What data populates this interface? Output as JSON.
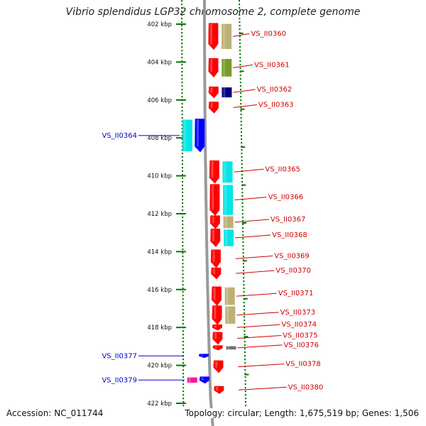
{
  "title": "Vibrio splendidus LGP32 chromosome 2, complete genome",
  "footer": {
    "accession": "Accession: NC_011744",
    "summary": "Topology: circular; Length: 1,675,519 bp; Genes: 1,506"
  },
  "colors": {
    "red": "#ff0000",
    "tan": "#bdb076",
    "olive": "#7a9a2a",
    "navy": "#000080",
    "cyan": "#00e5e5",
    "blue": "#0000ff",
    "magenta": "#ff1493",
    "gray": "#707070",
    "scale": "#007700",
    "labelRed": "#cc0000",
    "labelBlue": "#0000cc"
  },
  "scale": {
    "ticks": [
      {
        "kbp": 402,
        "label": "402 kbp"
      },
      {
        "kbp": 404,
        "label": "404 kbp"
      },
      {
        "kbp": 406,
        "label": "406 kbp"
      },
      {
        "kbp": 408,
        "label": "408 kbp"
      },
      {
        "kbp": 410,
        "label": "410 kbp"
      },
      {
        "kbp": 412,
        "label": "412 kbp"
      },
      {
        "kbp": 414,
        "label": "414 kbp"
      },
      {
        "kbp": 416,
        "label": "416 kbp"
      },
      {
        "kbp": 418,
        "label": "418 kbp"
      },
      {
        "kbp": 420,
        "label": "420 kbp"
      },
      {
        "kbp": 422,
        "label": "422 kbp"
      }
    ]
  },
  "genes": [
    {
      "id": "VS_II0360",
      "label": "VS_II0360",
      "strand": "forward",
      "start_kbp": 401.95,
      "end_kbp": 403.35,
      "color": "red",
      "category_color": "tan"
    },
    {
      "id": "VS_II0361",
      "label": "VS_II0361",
      "strand": "forward",
      "start_kbp": 403.8,
      "end_kbp": 404.8,
      "color": "red",
      "category_color": "olive"
    },
    {
      "id": "VS_II0362",
      "label": "VS_II0362",
      "strand": "forward",
      "start_kbp": 405.3,
      "end_kbp": 405.9,
      "color": "red",
      "category_color": "navy"
    },
    {
      "id": "VS_II0363",
      "label": "VS_II0363",
      "strand": "forward",
      "start_kbp": 406.1,
      "end_kbp": 406.7,
      "color": "red",
      "category_color": ""
    },
    {
      "id": "VS_II0364",
      "label": "VS_II0364",
      "strand": "forward",
      "start_kbp": 407.0,
      "end_kbp": 408.75,
      "color": "blue",
      "category_color": "cyan",
      "side": "left"
    },
    {
      "id": "VS_II0365",
      "label": "VS_II0365",
      "strand": "forward",
      "start_kbp": 409.2,
      "end_kbp": 410.4,
      "color": "red",
      "category_color": "cyan"
    },
    {
      "id": "VS_II0366",
      "label": "VS_II0366",
      "strand": "forward",
      "start_kbp": 410.45,
      "end_kbp": 412.1,
      "color": "red",
      "category_color": "cyan"
    },
    {
      "id": "VS_II0367",
      "label": "VS_II0367",
      "strand": "forward",
      "start_kbp": 412.1,
      "end_kbp": 412.8,
      "color": "red",
      "category_color": "tan"
    },
    {
      "id": "VS_II0368",
      "label": "VS_II0368",
      "strand": "forward",
      "start_kbp": 412.8,
      "end_kbp": 413.75,
      "color": "red",
      "category_color": "cyan"
    },
    {
      "id": "VS_II0369",
      "label": "VS_II0369",
      "strand": "forward",
      "start_kbp": 413.9,
      "end_kbp": 414.85,
      "color": "red",
      "category_color": ""
    },
    {
      "id": "VS_II0370",
      "label": "VS_II0370",
      "strand": "forward",
      "start_kbp": 414.85,
      "end_kbp": 415.45,
      "color": "red",
      "category_color": ""
    },
    {
      "id": "VS_II0371",
      "label": "VS_II0371",
      "strand": "forward",
      "start_kbp": 415.85,
      "end_kbp": 416.85,
      "color": "red",
      "category_color": "tan"
    },
    {
      "id": "VS_II0373",
      "label": "VS_II0373",
      "strand": "forward",
      "start_kbp": 416.85,
      "end_kbp": 417.85,
      "color": "red",
      "category_color": "tan"
    },
    {
      "id": "VS_II0374",
      "label": "VS_II0374",
      "strand": "forward",
      "start_kbp": 417.85,
      "end_kbp": 418.15,
      "color": "red",
      "category_color": ""
    },
    {
      "id": "VS_II0375",
      "label": "VS_II0375",
      "strand": "forward",
      "start_kbp": 418.25,
      "end_kbp": 418.9,
      "color": "red",
      "category_color": ""
    },
    {
      "id": "VS_II0376",
      "label": "VS_II0376",
      "strand": "forward",
      "start_kbp": 418.95,
      "end_kbp": 419.2,
      "color": "red",
      "category_color": "gray"
    },
    {
      "id": "VS_II0377",
      "label": "VS_II0377",
      "strand": "forward",
      "start_kbp": 419.4,
      "end_kbp": 419.6,
      "color": "blue",
      "category_color": "",
      "side": "left"
    },
    {
      "id": "VS_II0378",
      "label": "VS_II0378",
      "strand": "forward",
      "start_kbp": 419.75,
      "end_kbp": 420.4,
      "color": "red",
      "category_color": ""
    },
    {
      "id": "VS_II0379",
      "label": "VS_II0379",
      "strand": "forward",
      "start_kbp": 420.6,
      "end_kbp": 420.95,
      "color": "blue",
      "category_color": "magenta",
      "side": "left"
    },
    {
      "id": "VS_II0380",
      "label": "VS_II0380",
      "strand": "forward",
      "start_kbp": 421.1,
      "end_kbp": 421.5,
      "color": "red",
      "category_color": ""
    }
  ]
}
